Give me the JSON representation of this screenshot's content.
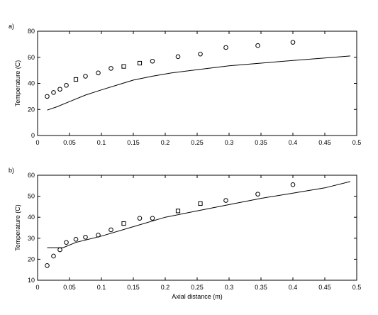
{
  "chart_data": [
    {
      "type": "line",
      "panel_label": "a)",
      "ylabel": "Temperature (C)",
      "xlabel": "",
      "xlim": [
        0,
        0.5
      ],
      "ylim": [
        0,
        80
      ],
      "xticks": [
        0,
        0.05,
        0.1,
        0.15,
        0.2,
        0.25,
        0.3,
        0.35,
        0.4,
        0.45,
        0.5
      ],
      "yticks": [
        0,
        20,
        40,
        60,
        80
      ],
      "xtick_labels": [
        "0",
        "0.05",
        "0.1",
        "0.15",
        "0.2",
        "0.25",
        "0.3",
        "0.35",
        "0.4",
        "0.45",
        "0.5"
      ],
      "ytick_labels": [
        "0",
        "20",
        "40",
        "60",
        "80"
      ],
      "grid": false,
      "series": [
        {
          "type": "scatter",
          "marker": "circle",
          "points": [
            [
              0.015,
              30
            ],
            [
              0.025,
              33
            ],
            [
              0.035,
              35.5
            ],
            [
              0.045,
              38.5
            ],
            [
              0.075,
              45.5
            ],
            [
              0.095,
              48
            ],
            [
              0.115,
              51.5
            ],
            [
              0.18,
              57
            ],
            [
              0.22,
              60.5
            ],
            [
              0.255,
              62.5
            ],
            [
              0.295,
              67.5
            ],
            [
              0.345,
              69
            ],
            [
              0.4,
              71.5
            ]
          ]
        },
        {
          "type": "scatter",
          "marker": "square",
          "points": [
            [
              0.06,
              43
            ],
            [
              0.135,
              53
            ],
            [
              0.16,
              55.5
            ]
          ]
        },
        {
          "type": "line",
          "points": [
            [
              0.015,
              19.5
            ],
            [
              0.03,
              22
            ],
            [
              0.05,
              26
            ],
            [
              0.075,
              31
            ],
            [
              0.1,
              35
            ],
            [
              0.13,
              39.5
            ],
            [
              0.15,
              42.5
            ],
            [
              0.18,
              45.5
            ],
            [
              0.21,
              48
            ],
            [
              0.25,
              50.5
            ],
            [
              0.3,
              53.5
            ],
            [
              0.35,
              55.5
            ],
            [
              0.4,
              57.5
            ],
            [
              0.45,
              59.5
            ],
            [
              0.49,
              61
            ]
          ]
        }
      ]
    },
    {
      "type": "line",
      "panel_label": "b)",
      "ylabel": "Temperature (C)",
      "xlabel": "Axial distance (m)",
      "xlim": [
        0,
        0.5
      ],
      "ylim": [
        10,
        60
      ],
      "xticks": [
        0,
        0.05,
        0.1,
        0.15,
        0.2,
        0.25,
        0.3,
        0.35,
        0.4,
        0.45,
        0.5
      ],
      "yticks": [
        10,
        20,
        30,
        40,
        50,
        60
      ],
      "xtick_labels": [
        "0",
        "0.05",
        "0.1",
        "0.15",
        "0.2",
        "0.25",
        "0.3",
        "0.35",
        "0.4",
        "0.45",
        "0.5"
      ],
      "ytick_labels": [
        "10",
        "20",
        "30",
        "40",
        "50",
        "60"
      ],
      "grid": false,
      "series": [
        {
          "type": "scatter",
          "marker": "circle",
          "points": [
            [
              0.015,
              17
            ],
            [
              0.025,
              21.5
            ],
            [
              0.035,
              24.5
            ],
            [
              0.045,
              28
            ],
            [
              0.06,
              29.5
            ],
            [
              0.075,
              30.5
            ],
            [
              0.095,
              31.5
            ],
            [
              0.115,
              34
            ],
            [
              0.16,
              39.5
            ],
            [
              0.18,
              39.5
            ],
            [
              0.295,
              48
            ],
            [
              0.345,
              51
            ],
            [
              0.4,
              55.5
            ]
          ]
        },
        {
          "type": "scatter",
          "marker": "square",
          "points": [
            [
              0.135,
              37
            ],
            [
              0.22,
              43
            ],
            [
              0.255,
              46.5
            ]
          ]
        },
        {
          "type": "line",
          "points": [
            [
              0.015,
              25.5
            ],
            [
              0.04,
              25.5
            ],
            [
              0.06,
              28
            ],
            [
              0.1,
              31
            ],
            [
              0.15,
              35.5
            ],
            [
              0.2,
              40
            ],
            [
              0.25,
              43
            ],
            [
              0.3,
              46
            ],
            [
              0.35,
              49
            ],
            [
              0.4,
              51.5
            ],
            [
              0.45,
              54
            ],
            [
              0.49,
              57
            ]
          ]
        }
      ]
    }
  ]
}
